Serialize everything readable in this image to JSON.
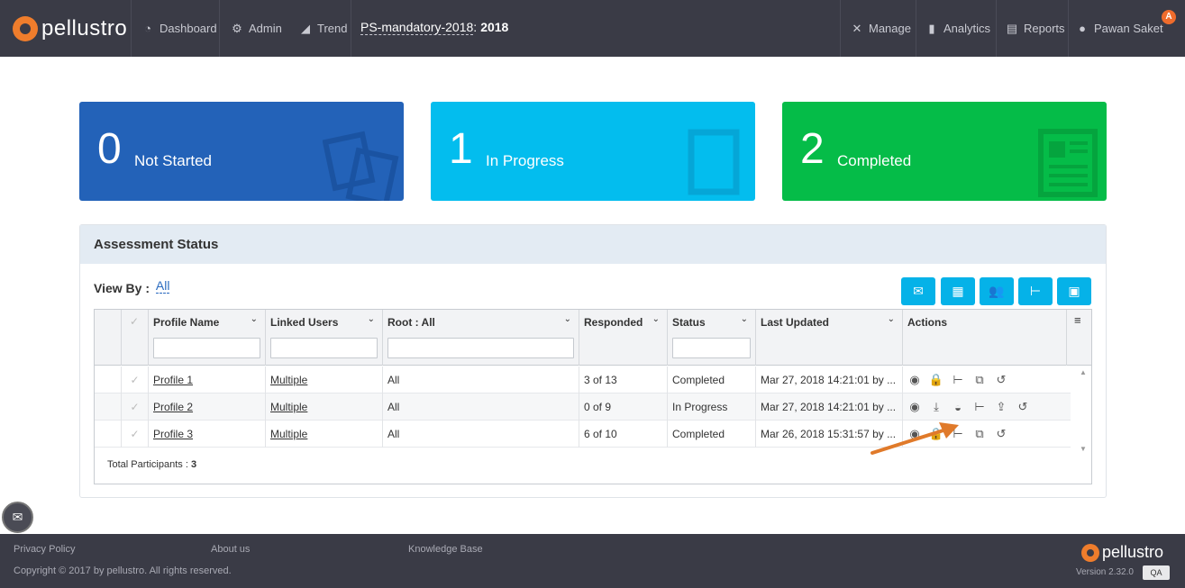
{
  "app": {
    "brand": "pellustro",
    "user_badge": "A",
    "colors": {
      "nav_bg": "#3a3b46",
      "accent_orange": "#ef7d2c",
      "tile_blue": "#2362b8",
      "tile_cyan": "#03bdee",
      "tile_green": "#05bc48",
      "button_blue": "#05b2e8"
    }
  },
  "nav": {
    "dashboard": "Dashboard",
    "admin": "Admin",
    "trend": "Trend",
    "title_name": "PS-mandatory-2018",
    "title_sep": " :",
    "title_year": "2018",
    "manage": "Manage",
    "analytics": "Analytics",
    "reports": "Reports",
    "user": "Pawan Saket",
    "icons": {
      "dashboard": "gauge-icon",
      "admin": "gear-icon",
      "trend": "trend-chart-icon",
      "manage": "tools-icon",
      "analytics": "bar-chart-icon",
      "reports": "document-icon",
      "user": "user-icon"
    }
  },
  "tiles": [
    {
      "count": "0",
      "label": "Not Started",
      "icon": "documents-icon"
    },
    {
      "count": "1",
      "label": "In Progress",
      "icon": "document-outline-icon"
    },
    {
      "count": "2",
      "label": "Completed",
      "icon": "report-icon"
    }
  ],
  "panel": {
    "title": "Assessment Status",
    "view_by_label": "View By :",
    "view_by_value": "All",
    "toolbar_icons": [
      "mail-icon",
      "calendar-icon",
      "users-icon",
      "hierarchy-add-icon",
      "archive-icon"
    ]
  },
  "grid": {
    "columns": {
      "profile_name": "Profile Name",
      "linked_users": "Linked Users",
      "root": "Root : All",
      "responded": "Responded",
      "status": "Status",
      "last_updated": "Last Updated",
      "actions": "Actions"
    },
    "rows": [
      {
        "profile": "Profile 1",
        "linked": "Multiple",
        "root": "All",
        "responded": "3 of 13",
        "status": "Completed",
        "updated": "Mar 27, 2018 14:21:01 by ..."
      },
      {
        "profile": "Profile 2",
        "linked": "Multiple",
        "root": "All",
        "responded": "0 of 9",
        "status": "In Progress",
        "updated": "Mar 27, 2018 14:21:01 by ..."
      },
      {
        "profile": "Profile 3",
        "linked": "Multiple",
        "root": "All",
        "responded": "6 of 10",
        "status": "Completed",
        "updated": "Mar 26, 2018 15:31:57 by ..."
      }
    ],
    "total_label": "Total Participants :",
    "total_value": "3"
  },
  "footer": {
    "privacy": "Privacy Policy",
    "about": "About us",
    "kb": "Knowledge Base",
    "copyright": "Copyright © 2017 by pellustro. All rights reserved.",
    "brand": "pellustro",
    "version": "Version 2.32.0",
    "env": "QA"
  }
}
